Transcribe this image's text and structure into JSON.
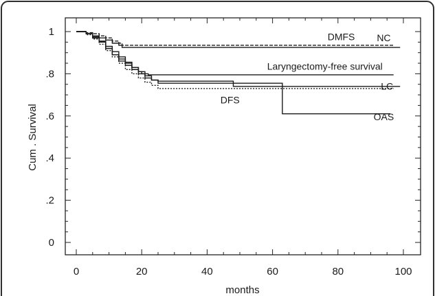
{
  "chart_data": {
    "type": "line",
    "xlabel": "months",
    "ylabel": "Cum . Survival",
    "xlim": [
      0,
      100
    ],
    "ylim": [
      0,
      1
    ],
    "x_ticks": [
      0,
      20,
      40,
      60,
      80,
      100
    ],
    "x_tick_labels": [
      "0",
      "20",
      "40",
      "60",
      "80",
      "100"
    ],
    "y_ticks": [
      0,
      0.2,
      0.4,
      0.6,
      0.8,
      1.0
    ],
    "y_tick_labels": [
      "0",
      ".2",
      ".4",
      ".6",
      ".8",
      "1"
    ],
    "grid": false,
    "series": [
      {
        "name": "DMFS",
        "dash": "dashed",
        "x": [
          0,
          3,
          5,
          7,
          9,
          11,
          13,
          14,
          15,
          97
        ],
        "y": [
          1.0,
          0.995,
          0.99,
          0.98,
          0.97,
          0.955,
          0.945,
          0.935,
          0.935,
          0.935
        ]
      },
      {
        "name": "NC",
        "dash": "solid",
        "x": [
          0,
          3,
          5,
          7,
          9,
          11,
          13,
          14,
          15,
          99
        ],
        "y": [
          1.0,
          0.99,
          0.98,
          0.97,
          0.96,
          0.945,
          0.935,
          0.925,
          0.925,
          0.925
        ]
      },
      {
        "name": "Laryngectomy-free survival",
        "dash": "solid",
        "x": [
          0,
          3,
          5,
          7,
          9,
          11,
          13,
          15,
          17,
          19,
          20,
          22,
          97
        ],
        "y": [
          1.0,
          0.99,
          0.97,
          0.95,
          0.92,
          0.89,
          0.87,
          0.85,
          0.83,
          0.81,
          0.8,
          0.795,
          0.795
        ]
      },
      {
        "name": "LC",
        "dash": "solid",
        "x": [
          0,
          3,
          5,
          7,
          9,
          11,
          13,
          15,
          17,
          19,
          21,
          23,
          25,
          48,
          99
        ],
        "y": [
          1.0,
          0.99,
          0.97,
          0.95,
          0.92,
          0.89,
          0.86,
          0.84,
          0.82,
          0.8,
          0.78,
          0.77,
          0.765,
          0.74,
          0.74
        ]
      },
      {
        "name": "DFS",
        "dash": "dotted",
        "x": [
          0,
          3,
          5,
          7,
          9,
          11,
          13,
          15,
          17,
          19,
          21,
          23,
          25,
          97
        ],
        "y": [
          1.0,
          0.985,
          0.965,
          0.94,
          0.91,
          0.88,
          0.85,
          0.82,
          0.8,
          0.78,
          0.76,
          0.745,
          0.73,
          0.73
        ]
      },
      {
        "name": "OAS",
        "dash": "solid",
        "x": [
          0,
          3,
          5,
          7,
          9,
          11,
          13,
          15,
          17,
          19,
          21,
          23,
          25,
          63,
          96
        ],
        "y": [
          1.0,
          0.99,
          0.975,
          0.955,
          0.93,
          0.905,
          0.88,
          0.855,
          0.83,
          0.81,
          0.79,
          0.77,
          0.755,
          0.61,
          0.61
        ]
      }
    ],
    "annotations": [
      {
        "text": "DMFS",
        "x": 81,
        "y": 0.96
      },
      {
        "text": "NC",
        "x": 94,
        "y": 0.955
      },
      {
        "text": "Laryngectomy-free survival",
        "x": 76,
        "y": 0.82
      },
      {
        "text": "LC",
        "x": 95,
        "y": 0.725
      },
      {
        "text": "DFS",
        "x": 47,
        "y": 0.66
      },
      {
        "text": "OAS",
        "x": 94,
        "y": 0.58
      }
    ]
  }
}
